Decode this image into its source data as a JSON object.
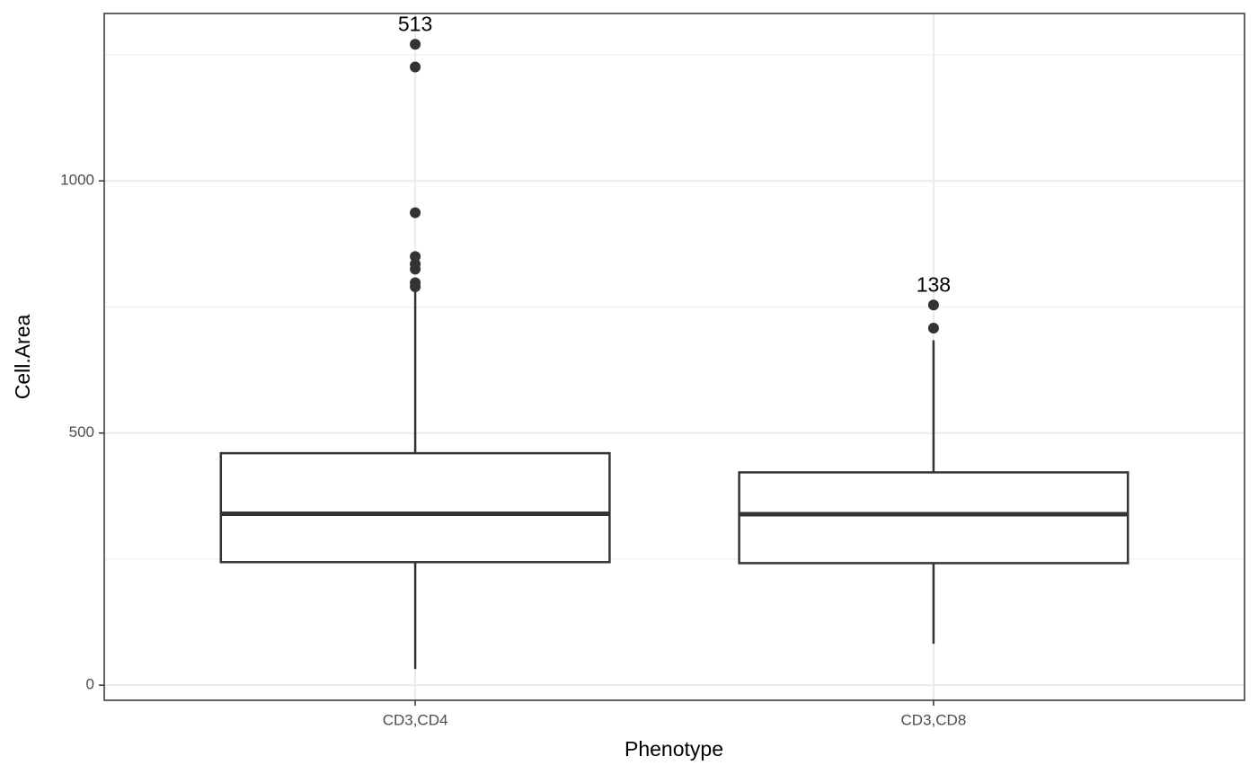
{
  "chart_data": {
    "type": "box",
    "x_label": "Phenotype",
    "y_label": "Cell.Area",
    "categories": [
      "CD3,CD4",
      "CD3,CD8"
    ],
    "min": [
      32,
      82
    ],
    "q1": [
      244,
      242
    ],
    "median": [
      340,
      339
    ],
    "q3": [
      460,
      422
    ],
    "max": [
      780,
      684
    ],
    "outliers": [
      [
        1271,
        1226,
        937,
        850,
        835,
        825,
        798,
        790
      ],
      [
        754,
        708
      ]
    ],
    "outlier_labels": [
      "513",
      "138"
    ],
    "color": "#333333",
    "ylim": [
      -30,
      1332
    ],
    "yticks": [
      0,
      500,
      1000
    ],
    "minor_yticks": [
      250,
      750,
      1250
    ],
    "grid": true
  }
}
